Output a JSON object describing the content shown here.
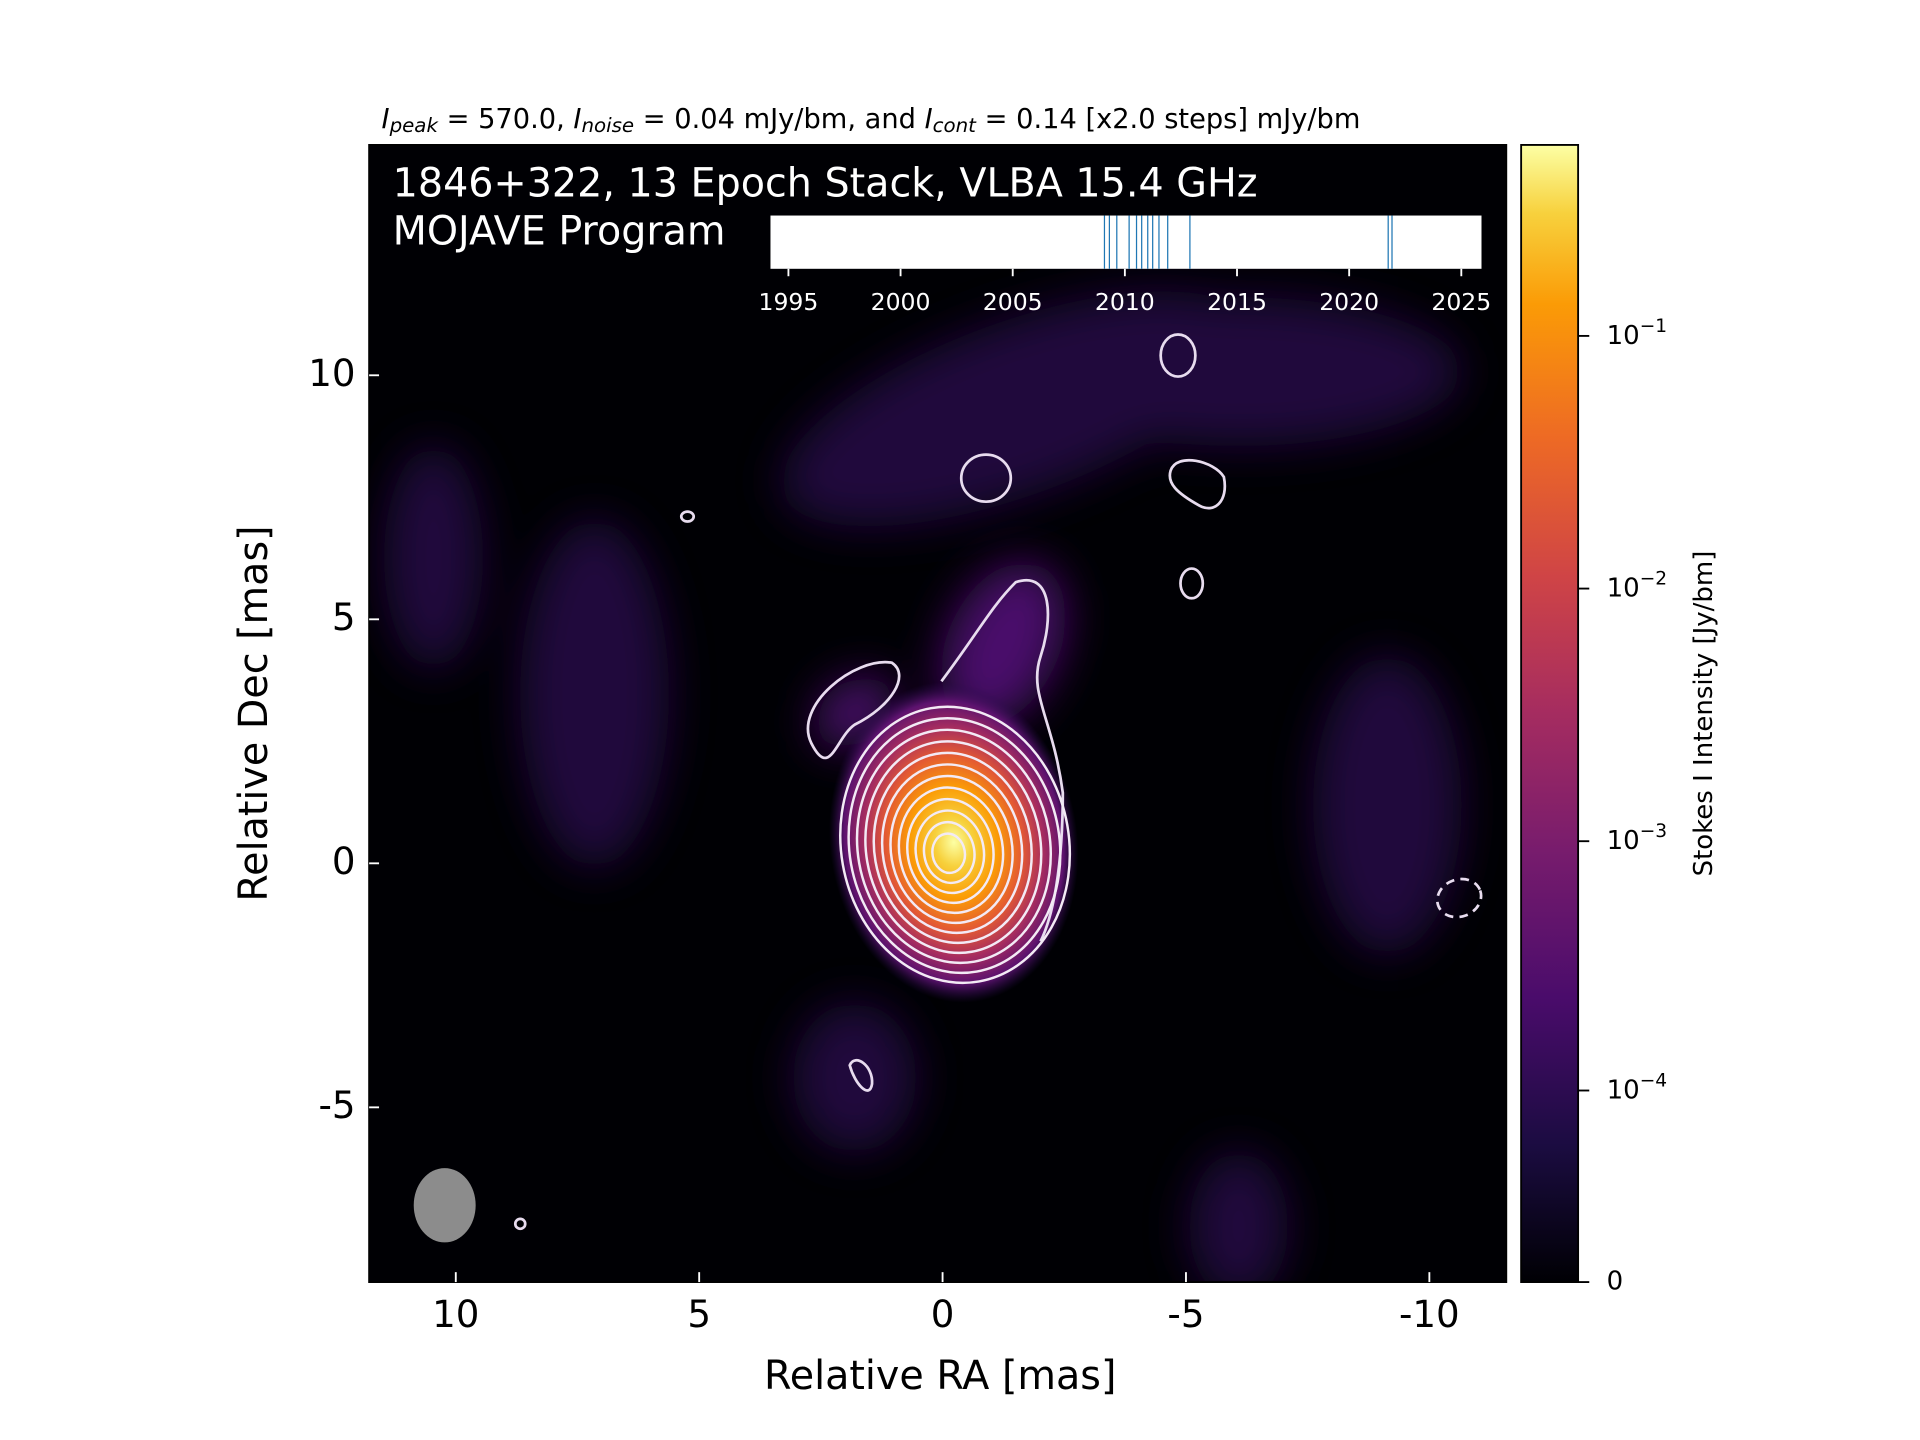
{
  "chart_data": {
    "type": "image",
    "title": [
      {
        "text": "I",
        "italic": true
      },
      {
        "text": "peak",
        "italic": true,
        "sub": true
      },
      {
        "text": " = 570.0, "
      },
      {
        "text": "I",
        "italic": true
      },
      {
        "text": "noise",
        "italic": true,
        "sub": true
      },
      {
        "text": " = 0.04 mJy/bm, and "
      },
      {
        "text": "I",
        "italic": true
      },
      {
        "text": "cont",
        "italic": true,
        "sub": true
      },
      {
        "text": " = 0.14 [x2.0 steps] mJy/bm"
      }
    ],
    "annotation": [
      "1846+322, 13 Epoch Stack, VLBA 15.4 GHz",
      "MOJAVE Program"
    ],
    "x_label": "Relative RA [mas]",
    "y_label": "Relative Dec [mas]",
    "xlim": [
      11.78,
      -11.58
    ],
    "ylim": [
      -8.58,
      14.72
    ],
    "xticks": [
      10,
      5,
      0,
      -5,
      -10
    ],
    "yticks": [
      -5,
      0,
      5,
      10
    ],
    "colorbar": {
      "label": "Stokes I Intensity [Jy/bm]",
      "colormap": "inferno",
      "scale": "asinh",
      "linear_width": 3.6e-05,
      "lim": [
        0,
        0.57
      ],
      "ticks": [
        0,
        {
          "value": 0.0001,
          "label": "10^−4"
        },
        {
          "value": 0.001,
          "label": "10^−3"
        },
        {
          "value": 0.01,
          "label": "10^−2"
        },
        {
          "value": 0.1,
          "label": "10^−1"
        }
      ]
    },
    "epoch_inset": {
      "xlim": [
        1994.2,
        2025.9
      ],
      "xticks": [
        1995,
        2000,
        2005,
        2010,
        2015,
        2020,
        2025
      ],
      "color": "#1f77b4",
      "epochs": [
        2009.09,
        2009.31,
        2009.64,
        2010.19,
        2010.52,
        2010.75,
        2011.02,
        2011.24,
        2011.52,
        2011.91,
        2012.9,
        2021.74,
        2021.91
      ]
    }
  }
}
